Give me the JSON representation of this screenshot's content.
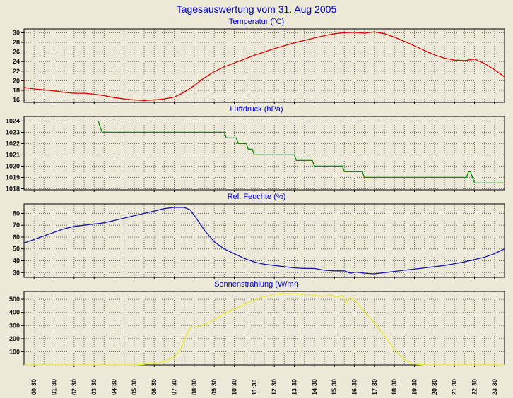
{
  "page": {
    "title": "Tagesauswertung vom 31. Aug 2005",
    "title_color": "#0000cc",
    "background": "#ece9d8"
  },
  "x_axis": {
    "xlim": [
      0,
      24
    ],
    "labels": [
      "00:30",
      "01:30",
      "02:30",
      "03:30",
      "04:30",
      "05:30",
      "06:30",
      "07:30",
      "08:30",
      "09:30",
      "10:30",
      "11:30",
      "12:30",
      "13:30",
      "14:30",
      "15:30",
      "16:30",
      "17:30",
      "18:30",
      "19:30",
      "20:30",
      "21:30",
      "22:30",
      "23:30"
    ]
  },
  "chart_data": [
    {
      "type": "line",
      "title": "Temperatur (°C)",
      "color": "#e00000",
      "ylim": [
        15.5,
        30.8
      ],
      "yticks": [
        16,
        18,
        20,
        22,
        24,
        26,
        28,
        30
      ],
      "points": [
        [
          0,
          18.6
        ],
        [
          0.5,
          18.3
        ],
        [
          1,
          18.1
        ],
        [
          1.5,
          17.9
        ],
        [
          2,
          17.6
        ],
        [
          2.5,
          17.4
        ],
        [
          3,
          17.4
        ],
        [
          3.5,
          17.2
        ],
        [
          4,
          16.9
        ],
        [
          4.5,
          16.5
        ],
        [
          5,
          16.2
        ],
        [
          5.5,
          16.0
        ],
        [
          6,
          15.9
        ],
        [
          6.5,
          16.0
        ],
        [
          7,
          16.2
        ],
        [
          7.5,
          16.6
        ],
        [
          8,
          17.6
        ],
        [
          8.5,
          19.0
        ],
        [
          9,
          20.6
        ],
        [
          9.5,
          21.9
        ],
        [
          10,
          22.9
        ],
        [
          10.5,
          23.7
        ],
        [
          11,
          24.5
        ],
        [
          11.5,
          25.3
        ],
        [
          12,
          26.0
        ],
        [
          12.5,
          26.7
        ],
        [
          13,
          27.3
        ],
        [
          13.5,
          27.9
        ],
        [
          14,
          28.4
        ],
        [
          14.5,
          28.9
        ],
        [
          15,
          29.4
        ],
        [
          15.5,
          29.8
        ],
        [
          16,
          30.0
        ],
        [
          16.5,
          30.1
        ],
        [
          17,
          29.9
        ],
        [
          17.5,
          30.2
        ],
        [
          18,
          29.8
        ],
        [
          18.5,
          29.1
        ],
        [
          19,
          28.2
        ],
        [
          19.5,
          27.3
        ],
        [
          20,
          26.3
        ],
        [
          20.5,
          25.4
        ],
        [
          21,
          24.7
        ],
        [
          21.5,
          24.3
        ],
        [
          22,
          24.2
        ],
        [
          22.5,
          24.5
        ],
        [
          23,
          23.6
        ],
        [
          23.5,
          22.3
        ],
        [
          24,
          20.8
        ]
      ]
    },
    {
      "type": "line",
      "title": "Luftdruck (hPa)",
      "color": "#009000",
      "ylim": [
        1017.9,
        1024.4
      ],
      "yticks": [
        1018,
        1019,
        1020,
        1021,
        1022,
        1023,
        1024
      ],
      "points": [
        [
          3.7,
          1024
        ],
        [
          3.9,
          1023
        ],
        [
          10.0,
          1023
        ],
        [
          10.1,
          1022.5
        ],
        [
          10.6,
          1022.5
        ],
        [
          10.7,
          1022
        ],
        [
          11.1,
          1022
        ],
        [
          11.2,
          1021.5
        ],
        [
          11.4,
          1021.5
        ],
        [
          11.5,
          1021
        ],
        [
          13.5,
          1021
        ],
        [
          13.6,
          1020.5
        ],
        [
          14.4,
          1020.5
        ],
        [
          14.5,
          1020
        ],
        [
          15.9,
          1020
        ],
        [
          16.0,
          1019.5
        ],
        [
          16.9,
          1019.5
        ],
        [
          17.0,
          1019
        ],
        [
          22.1,
          1019
        ],
        [
          22.2,
          1019.5
        ],
        [
          22.3,
          1019.5
        ],
        [
          22.4,
          1019
        ],
        [
          22.5,
          1018.5
        ],
        [
          24,
          1018.5
        ]
      ]
    },
    {
      "type": "line",
      "title": "Rel. Feuchte (%)",
      "color": "#1414b4",
      "ylim": [
        26,
        88
      ],
      "yticks": [
        30,
        40,
        50,
        60,
        70,
        80
      ],
      "points": [
        [
          0,
          55
        ],
        [
          0.5,
          58
        ],
        [
          1,
          61
        ],
        [
          1.5,
          64
        ],
        [
          2,
          67
        ],
        [
          2.5,
          69
        ],
        [
          3,
          70
        ],
        [
          3.5,
          71
        ],
        [
          4,
          72
        ],
        [
          4.5,
          74
        ],
        [
          5,
          76
        ],
        [
          5.5,
          78
        ],
        [
          6,
          80
        ],
        [
          6.5,
          82
        ],
        [
          7,
          84
        ],
        [
          7.5,
          85
        ],
        [
          8,
          85
        ],
        [
          8.3,
          83
        ],
        [
          8.6,
          76
        ],
        [
          9,
          66
        ],
        [
          9.5,
          56
        ],
        [
          10,
          50
        ],
        [
          10.5,
          46
        ],
        [
          11,
          42
        ],
        [
          11.5,
          39
        ],
        [
          12,
          37
        ],
        [
          12.5,
          36
        ],
        [
          13,
          35
        ],
        [
          13.5,
          34
        ],
        [
          14,
          33.5
        ],
        [
          14.5,
          33.5
        ],
        [
          15,
          32
        ],
        [
          15.5,
          31.5
        ],
        [
          16,
          31.5
        ],
        [
          16.3,
          29.5
        ],
        [
          16.6,
          30.5
        ],
        [
          17,
          29.5
        ],
        [
          17.5,
          29
        ],
        [
          18,
          30
        ],
        [
          18.5,
          31
        ],
        [
          19,
          32
        ],
        [
          19.5,
          33
        ],
        [
          20,
          34
        ],
        [
          20.5,
          35
        ],
        [
          21,
          36
        ],
        [
          21.5,
          37.5
        ],
        [
          22,
          39
        ],
        [
          22.5,
          41
        ],
        [
          23,
          43
        ],
        [
          23.5,
          46
        ],
        [
          24,
          50
        ]
      ]
    },
    {
      "type": "line",
      "title": "Sonnenstrahlung (W/m²)",
      "color": "#e8e832",
      "ylim": [
        0,
        560
      ],
      "yticks": [
        100,
        200,
        300,
        400,
        500
      ],
      "points": [
        [
          0,
          0
        ],
        [
          5.5,
          0
        ],
        [
          6,
          3
        ],
        [
          6.3,
          18
        ],
        [
          6.6,
          12
        ],
        [
          7,
          25
        ],
        [
          7.5,
          60
        ],
        [
          7.8,
          110
        ],
        [
          8,
          190
        ],
        [
          8.3,
          285
        ],
        [
          8.8,
          295
        ],
        [
          9,
          305
        ],
        [
          9.5,
          345
        ],
        [
          10,
          390
        ],
        [
          10.5,
          425
        ],
        [
          11,
          460
        ],
        [
          11.5,
          495
        ],
        [
          12,
          520
        ],
        [
          12.5,
          538
        ],
        [
          13,
          545
        ],
        [
          13.5,
          544
        ],
        [
          14,
          538
        ],
        [
          14.5,
          530
        ],
        [
          15,
          522
        ],
        [
          15.3,
          535
        ],
        [
          15.6,
          515
        ],
        [
          15.9,
          530
        ],
        [
          16.1,
          470
        ],
        [
          16.3,
          515
        ],
        [
          16.6,
          480
        ],
        [
          17,
          405
        ],
        [
          17.5,
          320
        ],
        [
          18,
          225
        ],
        [
          18.5,
          115
        ],
        [
          19,
          40
        ],
        [
          19.3,
          15
        ],
        [
          19.6,
          5
        ],
        [
          20,
          0
        ],
        [
          24,
          0
        ]
      ]
    }
  ]
}
